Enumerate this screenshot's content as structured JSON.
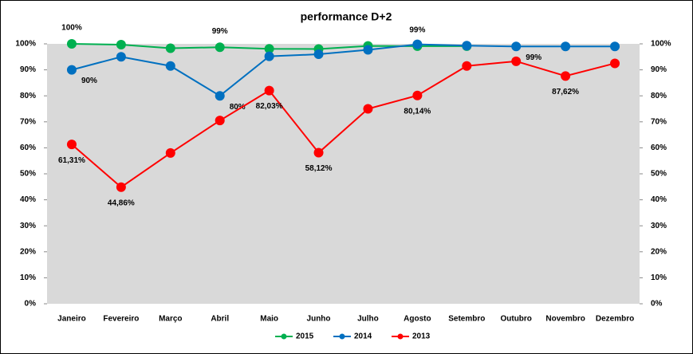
{
  "chart_data": {
    "type": "line",
    "title": "performance D+2",
    "categories": [
      "Janeiro",
      "Fevereiro",
      "Março",
      "Abril",
      "Maio",
      "Junho",
      "Julho",
      "Agosto",
      "Setembro",
      "Outubro",
      "Novembro",
      "Dezembro"
    ],
    "series": [
      {
        "name": "2015",
        "color": "#00b050",
        "values": [
          100,
          99.7,
          98.3,
          98.7,
          98.1,
          98,
          99.2,
          99.1,
          99.1,
          null,
          null,
          null
        ],
        "value_labels": [
          "100%",
          null,
          null,
          "99%",
          null,
          null,
          null,
          "99%",
          null,
          null,
          null,
          null
        ]
      },
      {
        "name": "2014",
        "color": "#0070c0",
        "values": [
          90,
          95,
          91.5,
          80,
          95.2,
          96,
          97.7,
          99.8,
          99.3,
          99,
          99,
          99
        ],
        "value_labels": [
          "90%",
          null,
          null,
          "80%",
          null,
          null,
          null,
          null,
          null,
          "99%",
          null,
          null
        ]
      },
      {
        "name": "2013",
        "color": "#ff0000",
        "values": [
          61.31,
          44.86,
          58,
          70.5,
          82.03,
          58.12,
          75,
          80.14,
          91.5,
          93.3,
          87.62,
          92.5
        ],
        "value_labels": [
          "61,31%",
          "44,86%",
          null,
          null,
          "82,03%",
          "58,12%",
          null,
          "80,14%",
          null,
          null,
          "87,62%",
          null
        ]
      }
    ],
    "ylim": [
      0,
      100
    ],
    "yticks": [
      {
        "value": 0,
        "label": "0%"
      },
      {
        "value": 10,
        "label": "10%"
      },
      {
        "value": 20,
        "label": "20%"
      },
      {
        "value": 30,
        "label": "30%"
      },
      {
        "value": 40,
        "label": "40%"
      },
      {
        "value": 50,
        "label": "50%"
      },
      {
        "value": 60,
        "label": "60%"
      },
      {
        "value": 70,
        "label": "70%"
      },
      {
        "value": 80,
        "label": "80%"
      },
      {
        "value": 90,
        "label": "90%"
      },
      {
        "value": 100,
        "label": "100%"
      }
    ],
    "y2lim": [
      0,
      100
    ],
    "y2ticks": [
      {
        "value": 0,
        "label": "0%"
      },
      {
        "value": 10,
        "label": "10%"
      },
      {
        "value": 20,
        "label": "20%"
      },
      {
        "value": 30,
        "label": "30%"
      },
      {
        "value": 40,
        "label": "40%"
      },
      {
        "value": 50,
        "label": "50%"
      },
      {
        "value": 60,
        "label": "60%"
      },
      {
        "value": 70,
        "label": "70%"
      },
      {
        "value": 80,
        "label": "80%"
      },
      {
        "value": 90,
        "label": "90%"
      },
      {
        "value": 100,
        "label": "100%"
      }
    ],
    "legend": "bottom"
  }
}
